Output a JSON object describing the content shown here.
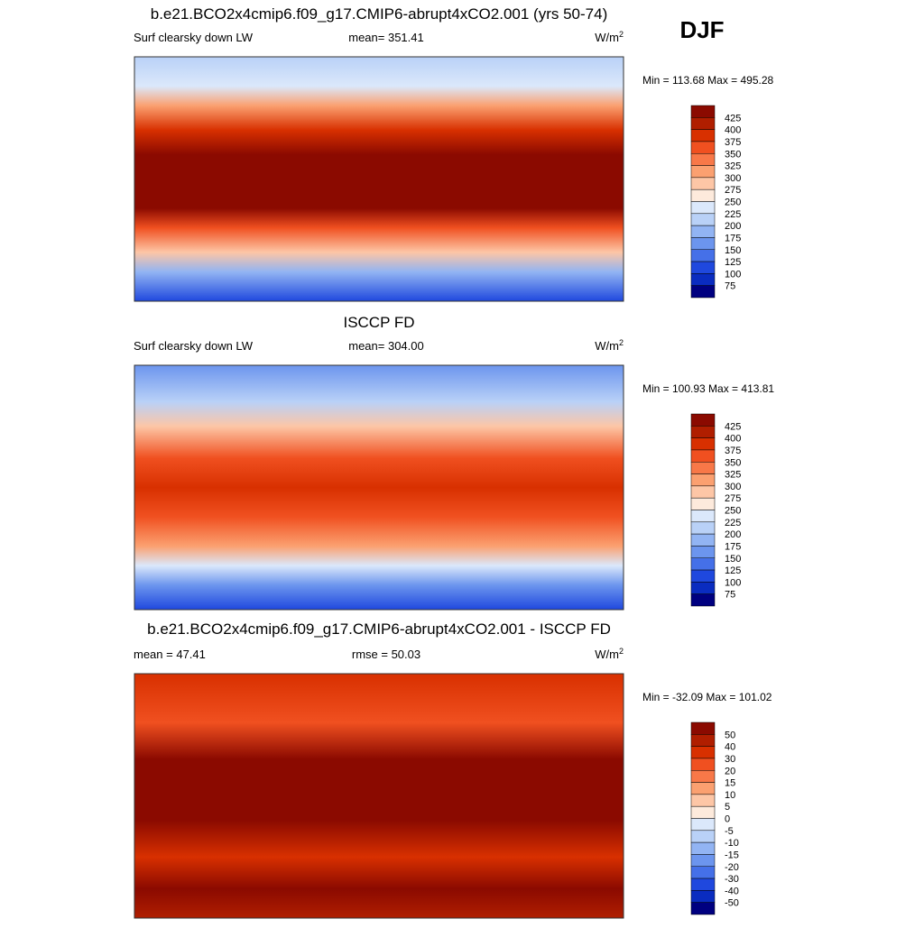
{
  "season": "DJF",
  "panels": [
    {
      "title": "b.e21.BCO2x4cmip6.f09_g17.CMIP6-abrupt4xCO2.001 (yrs 50-74)",
      "left": "Surf clearsky down LW",
      "center": "mean= 351.41",
      "units": "W/m",
      "units_sup": "2",
      "range": "Min = 113.68 Max = 495.28",
      "colorbar": {
        "labels": [
          "425",
          "400",
          "375",
          "350",
          "325",
          "300",
          "275",
          "250",
          "225",
          "200",
          "175",
          "150",
          "125",
          "100",
          "75"
        ],
        "colors": [
          "#8b0a00",
          "#b01e00",
          "#d83000",
          "#f05020",
          "#f87848",
          "#fba070",
          "#fdc6a6",
          "#fdeadc",
          "#dbe8fb",
          "#b9d1f7",
          "#92b4f3",
          "#6c95ee",
          "#4570e8",
          "#1f48de",
          "#0a2cc0",
          "#000080"
        ]
      }
    },
    {
      "title": "ISCCP FD",
      "left": "Surf clearsky down LW",
      "center": "mean= 304.00",
      "units": "W/m",
      "units_sup": "2",
      "range": "Min = 100.93 Max = 413.81",
      "colorbar": {
        "labels": [
          "425",
          "400",
          "375",
          "350",
          "325",
          "300",
          "275",
          "250",
          "225",
          "200",
          "175",
          "150",
          "125",
          "100",
          "75"
        ],
        "colors": [
          "#8b0a00",
          "#b01e00",
          "#d83000",
          "#f05020",
          "#f87848",
          "#fba070",
          "#fdc6a6",
          "#fdeadc",
          "#dbe8fb",
          "#b9d1f7",
          "#92b4f3",
          "#6c95ee",
          "#4570e8",
          "#1f48de",
          "#0a2cc0",
          "#000080"
        ]
      }
    },
    {
      "title": "b.e21.BCO2x4cmip6.f09_g17.CMIP6-abrupt4xCO2.001 - ISCCP FD",
      "left": "mean =  47.41",
      "center": "rmse =  50.03",
      "units": "W/m",
      "units_sup": "2",
      "range": "Min = -32.09 Max = 101.02",
      "colorbar": {
        "labels": [
          "50",
          "40",
          "30",
          "20",
          "15",
          "10",
          "5",
          "0",
          "-5",
          "-10",
          "-15",
          "-20",
          "-30",
          "-40",
          "-50"
        ],
        "colors": [
          "#8b0a00",
          "#b01e00",
          "#d83000",
          "#f05020",
          "#f87848",
          "#fba070",
          "#fdc6a6",
          "#fdeadc",
          "#dbe8fb",
          "#b9d1f7",
          "#92b4f3",
          "#6c95ee",
          "#4570e8",
          "#1f48de",
          "#0a2cc0",
          "#000080"
        ]
      }
    }
  ]
}
